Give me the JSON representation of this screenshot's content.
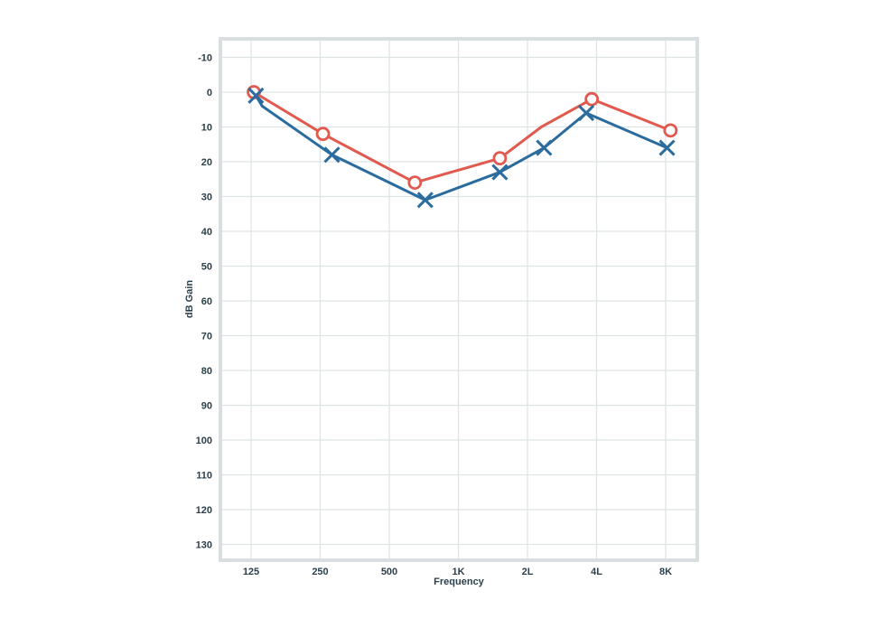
{
  "chart_data": {
    "type": "line",
    "title": "",
    "xlabel": "Frequency",
    "ylabel": "dB Gain",
    "x_categories": [
      "125",
      "250",
      "500",
      "1K",
      "2L",
      "4L",
      "8K"
    ],
    "y_ticks": [
      -10,
      0,
      10,
      20,
      30,
      40,
      50,
      60,
      70,
      80,
      90,
      100,
      110,
      120,
      130
    ],
    "ylim": [
      -15,
      135
    ],
    "y_inverted": true,
    "grid": true,
    "legend": "none",
    "series": [
      {
        "name": "circle-series",
        "marker": "circle",
        "color": "#e05a4f",
        "points": [
          {
            "x": 0.04,
            "y": 0,
            "marker": true
          },
          {
            "x": 1.04,
            "y": 12,
            "marker": true
          },
          {
            "x": 2.37,
            "y": 26,
            "marker": true
          },
          {
            "x": 3.6,
            "y": 19,
            "marker": true
          },
          {
            "x": 4.2,
            "y": 10,
            "marker": false
          },
          {
            "x": 4.93,
            "y": 2,
            "marker": true
          },
          {
            "x": 6.07,
            "y": 11,
            "marker": true
          }
        ]
      },
      {
        "name": "cross-series",
        "marker": "x",
        "color": "#2a6c9e",
        "points": [
          {
            "x": 0.07,
            "y": 1,
            "marker": true
          },
          {
            "x": 0.16,
            "y": 4,
            "marker": false
          },
          {
            "x": 1.17,
            "y": 18,
            "marker": true
          },
          {
            "x": 2.52,
            "y": 31,
            "marker": true
          },
          {
            "x": 3.6,
            "y": 23,
            "marker": true
          },
          {
            "x": 4.24,
            "y": 16,
            "marker": true
          },
          {
            "x": 4.85,
            "y": 6,
            "marker": true
          },
          {
            "x": 6.02,
            "y": 16,
            "marker": true
          }
        ]
      }
    ]
  },
  "colors": {
    "frame": "#d9dfe1",
    "grid": "#dde3e5",
    "text": "#2b3f4a"
  }
}
